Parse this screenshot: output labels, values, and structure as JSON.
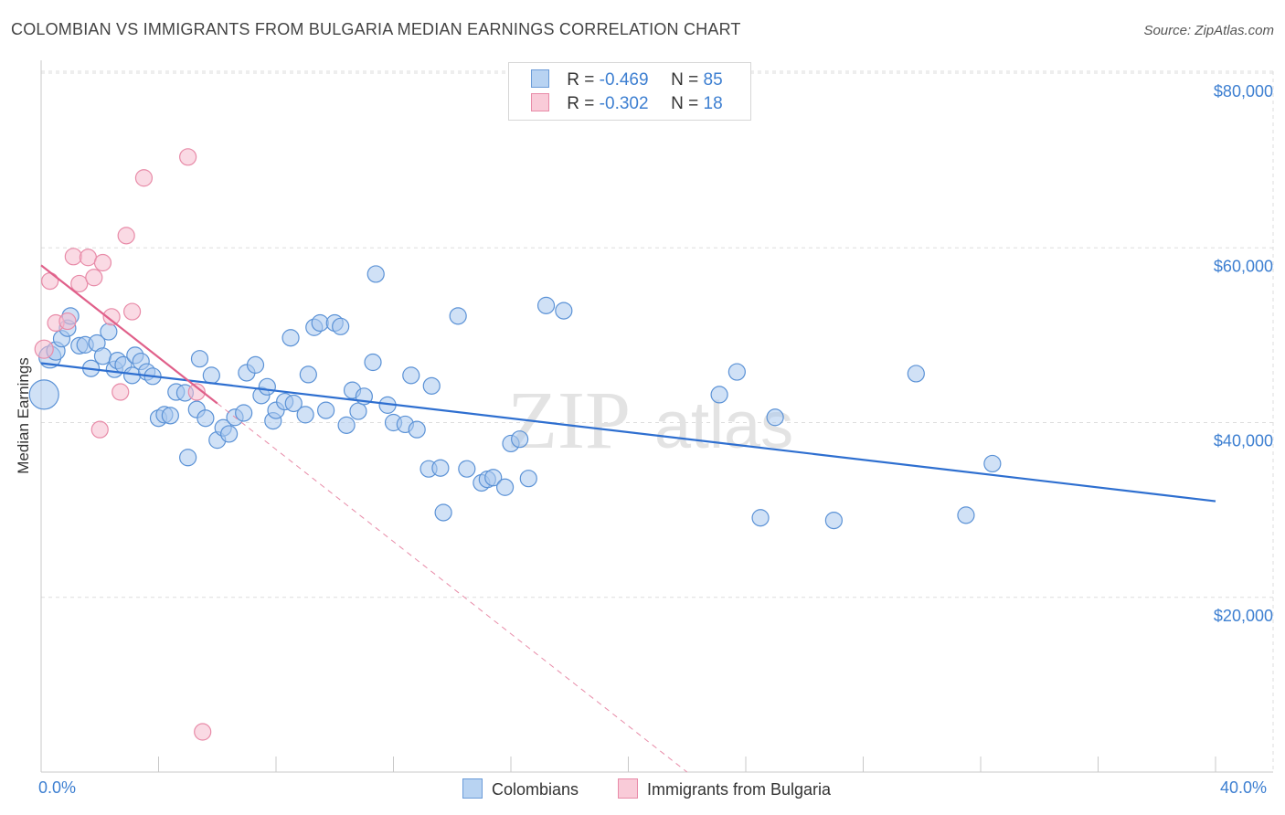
{
  "title": "COLOMBIAN VS IMMIGRANTS FROM BULGARIA MEDIAN EARNINGS CORRELATION CHART",
  "source": "Source: ZipAtlas.com",
  "watermark": {
    "zip": "ZIP",
    "atlas": "atlas"
  },
  "colors": {
    "colombians_fill": "#a9c8ee",
    "colombians_stroke": "#5b92d6",
    "colombians_line": "#2e6fd0",
    "bulgaria_fill": "#f6bccd",
    "bulgaria_stroke": "#e88ba8",
    "bulgaria_line": "#e0608a",
    "tick_text": "#3d7fd1",
    "grid": "#dddddd"
  },
  "legend": {
    "rows": [
      {
        "r_label": "R =",
        "r_value": "-0.469",
        "n_label": "N =",
        "n_value": "85"
      },
      {
        "r_label": "R =",
        "r_value": "-0.302",
        "n_label": "N =",
        "n_value": "18"
      }
    ]
  },
  "bottom_legend": {
    "series1": "Colombians",
    "series2": "Immigrants from Bulgaria"
  },
  "x_ticks": {
    "left": "0.0%",
    "right": "40.0%"
  },
  "y_ticks": [
    "$80,000",
    "$60,000",
    "$40,000",
    "$20,000"
  ],
  "chart_data": {
    "type": "scatter",
    "xlabel": "",
    "ylabel": "Median Earnings",
    "xlim": [
      0,
      40
    ],
    "ylim": [
      0,
      82000
    ],
    "y_ticks": [
      20000,
      40000,
      60000,
      80000
    ],
    "grid": true,
    "legend_placement": "top-center",
    "series": [
      {
        "name": "Colombians",
        "r": -0.469,
        "n": 85,
        "trend": {
          "x0": 0,
          "y0": 46800,
          "x1": 40,
          "y1": 31000
        },
        "points": [
          [
            0.1,
            43200,
            16
          ],
          [
            0.3,
            47500,
            12
          ],
          [
            0.5,
            48200,
            10
          ],
          [
            0.7,
            49600,
            9
          ],
          [
            0.9,
            50800,
            9
          ],
          [
            1.0,
            52200,
            9
          ],
          [
            1.3,
            48800,
            9
          ],
          [
            1.5,
            48900,
            9
          ],
          [
            1.7,
            46200,
            9
          ],
          [
            1.9,
            49100,
            9
          ],
          [
            2.1,
            47600,
            9
          ],
          [
            2.3,
            50400,
            9
          ],
          [
            2.5,
            46100,
            9
          ],
          [
            2.6,
            47100,
            9
          ],
          [
            2.8,
            46600,
            9
          ],
          [
            3.1,
            45400,
            9
          ],
          [
            3.2,
            47700,
            9
          ],
          [
            3.4,
            47000,
            9
          ],
          [
            3.6,
            45800,
            9
          ],
          [
            3.8,
            45300,
            9
          ],
          [
            4.0,
            40500,
            9
          ],
          [
            4.2,
            40900,
            9
          ],
          [
            4.4,
            40800,
            9
          ],
          [
            4.6,
            43500,
            9
          ],
          [
            4.9,
            43400,
            9
          ],
          [
            5.0,
            36000,
            9
          ],
          [
            5.3,
            41500,
            9
          ],
          [
            5.4,
            47300,
            9
          ],
          [
            5.6,
            40500,
            9
          ],
          [
            5.8,
            45400,
            9
          ],
          [
            6.0,
            38000,
            9
          ],
          [
            6.2,
            39400,
            9
          ],
          [
            6.4,
            38700,
            9
          ],
          [
            6.6,
            40600,
            9
          ],
          [
            6.9,
            41100,
            9
          ],
          [
            7.0,
            45700,
            9
          ],
          [
            7.3,
            46600,
            9
          ],
          [
            7.5,
            43100,
            9
          ],
          [
            7.7,
            44100,
            9
          ],
          [
            7.9,
            40200,
            9
          ],
          [
            8.0,
            41400,
            9
          ],
          [
            8.3,
            42400,
            9
          ],
          [
            8.5,
            49700,
            9
          ],
          [
            8.6,
            42200,
            9
          ],
          [
            9.0,
            40900,
            9
          ],
          [
            9.1,
            45500,
            9
          ],
          [
            9.3,
            50900,
            9
          ],
          [
            9.5,
            51400,
            9
          ],
          [
            9.7,
            41400,
            9
          ],
          [
            10.0,
            51400,
            9
          ],
          [
            10.2,
            51000,
            9
          ],
          [
            10.4,
            39700,
            9
          ],
          [
            10.6,
            43700,
            9
          ],
          [
            10.8,
            41300,
            9
          ],
          [
            11.0,
            43000,
            9
          ],
          [
            11.3,
            46900,
            9
          ],
          [
            11.4,
            57000,
            9
          ],
          [
            11.8,
            42000,
            9
          ],
          [
            12.0,
            40000,
            9
          ],
          [
            12.4,
            39800,
            9
          ],
          [
            12.6,
            45400,
            9
          ],
          [
            12.8,
            39200,
            9
          ],
          [
            13.2,
            34700,
            9
          ],
          [
            13.3,
            44200,
            9
          ],
          [
            13.6,
            34800,
            9
          ],
          [
            13.7,
            29700,
            9
          ],
          [
            14.2,
            52200,
            9
          ],
          [
            14.5,
            34700,
            9
          ],
          [
            15.0,
            33100,
            9
          ],
          [
            15.2,
            33500,
            9
          ],
          [
            15.4,
            33700,
            9
          ],
          [
            15.8,
            32600,
            9
          ],
          [
            16.0,
            37600,
            9
          ],
          [
            16.3,
            38100,
            9
          ],
          [
            16.6,
            33600,
            9
          ],
          [
            17.2,
            53400,
            9
          ],
          [
            17.8,
            52800,
            9
          ],
          [
            23.1,
            43200,
            9
          ],
          [
            23.7,
            45800,
            9
          ],
          [
            24.5,
            29100,
            9
          ],
          [
            25.0,
            40600,
            9
          ],
          [
            27.0,
            28800,
            9
          ],
          [
            29.8,
            45600,
            9
          ],
          [
            31.5,
            29400,
            9
          ],
          [
            32.4,
            35300,
            9
          ]
        ]
      },
      {
        "name": "Immigrants from Bulgaria",
        "r": -0.302,
        "n": 18,
        "trend": {
          "x0": 0,
          "y0": 58000,
          "x1": 6,
          "y1": 42200
        },
        "trend_extension": {
          "x0": 6,
          "y0": 42200,
          "x1": 22,
          "y1": 0
        },
        "points": [
          [
            0.1,
            48400,
            10
          ],
          [
            0.3,
            56200,
            9
          ],
          [
            0.5,
            51400,
            9
          ],
          [
            0.9,
            51600,
            9
          ],
          [
            1.1,
            59000,
            9
          ],
          [
            1.3,
            55900,
            9
          ],
          [
            1.6,
            58900,
            9
          ],
          [
            1.8,
            56600,
            9
          ],
          [
            2.1,
            58300,
            9
          ],
          [
            2.0,
            39200,
            9
          ],
          [
            2.4,
            52100,
            9
          ],
          [
            2.7,
            43500,
            9
          ],
          [
            2.9,
            61400,
            9
          ],
          [
            3.1,
            52700,
            9
          ],
          [
            3.5,
            68000,
            9
          ],
          [
            5.0,
            70400,
            9
          ],
          [
            5.3,
            43500,
            9
          ],
          [
            5.5,
            4600,
            9
          ]
        ]
      }
    ]
  }
}
